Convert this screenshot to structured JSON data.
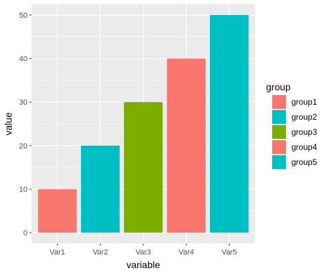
{
  "chart_data": {
    "type": "bar",
    "categories": [
      "Var1",
      "Var2",
      "Var3",
      "Var4",
      "Var5"
    ],
    "values": [
      10,
      20,
      30,
      40,
      50
    ],
    "groups": [
      "group1",
      "group2",
      "group3",
      "group4",
      "group5"
    ],
    "bar_colors": [
      "#F8766D",
      "#00BFC4",
      "#7CAE00",
      "#F8766D",
      "#00BFC4"
    ],
    "xlabel": "variable",
    "ylabel": "value",
    "ylim": [
      -2.5,
      52.5
    ],
    "yticks": [
      0,
      10,
      20,
      30,
      40,
      50
    ],
    "grid": true,
    "panel_background": "#EBEBEB",
    "legend": {
      "title": "group",
      "placement": "right",
      "entries": [
        {
          "label": "group1",
          "color": "#F8766D"
        },
        {
          "label": "group2",
          "color": "#00BFC4"
        },
        {
          "label": "group3",
          "color": "#7CAE00"
        },
        {
          "label": "group4",
          "color": "#F8766D"
        },
        {
          "label": "group5",
          "color": "#00BFC4"
        }
      ]
    }
  }
}
